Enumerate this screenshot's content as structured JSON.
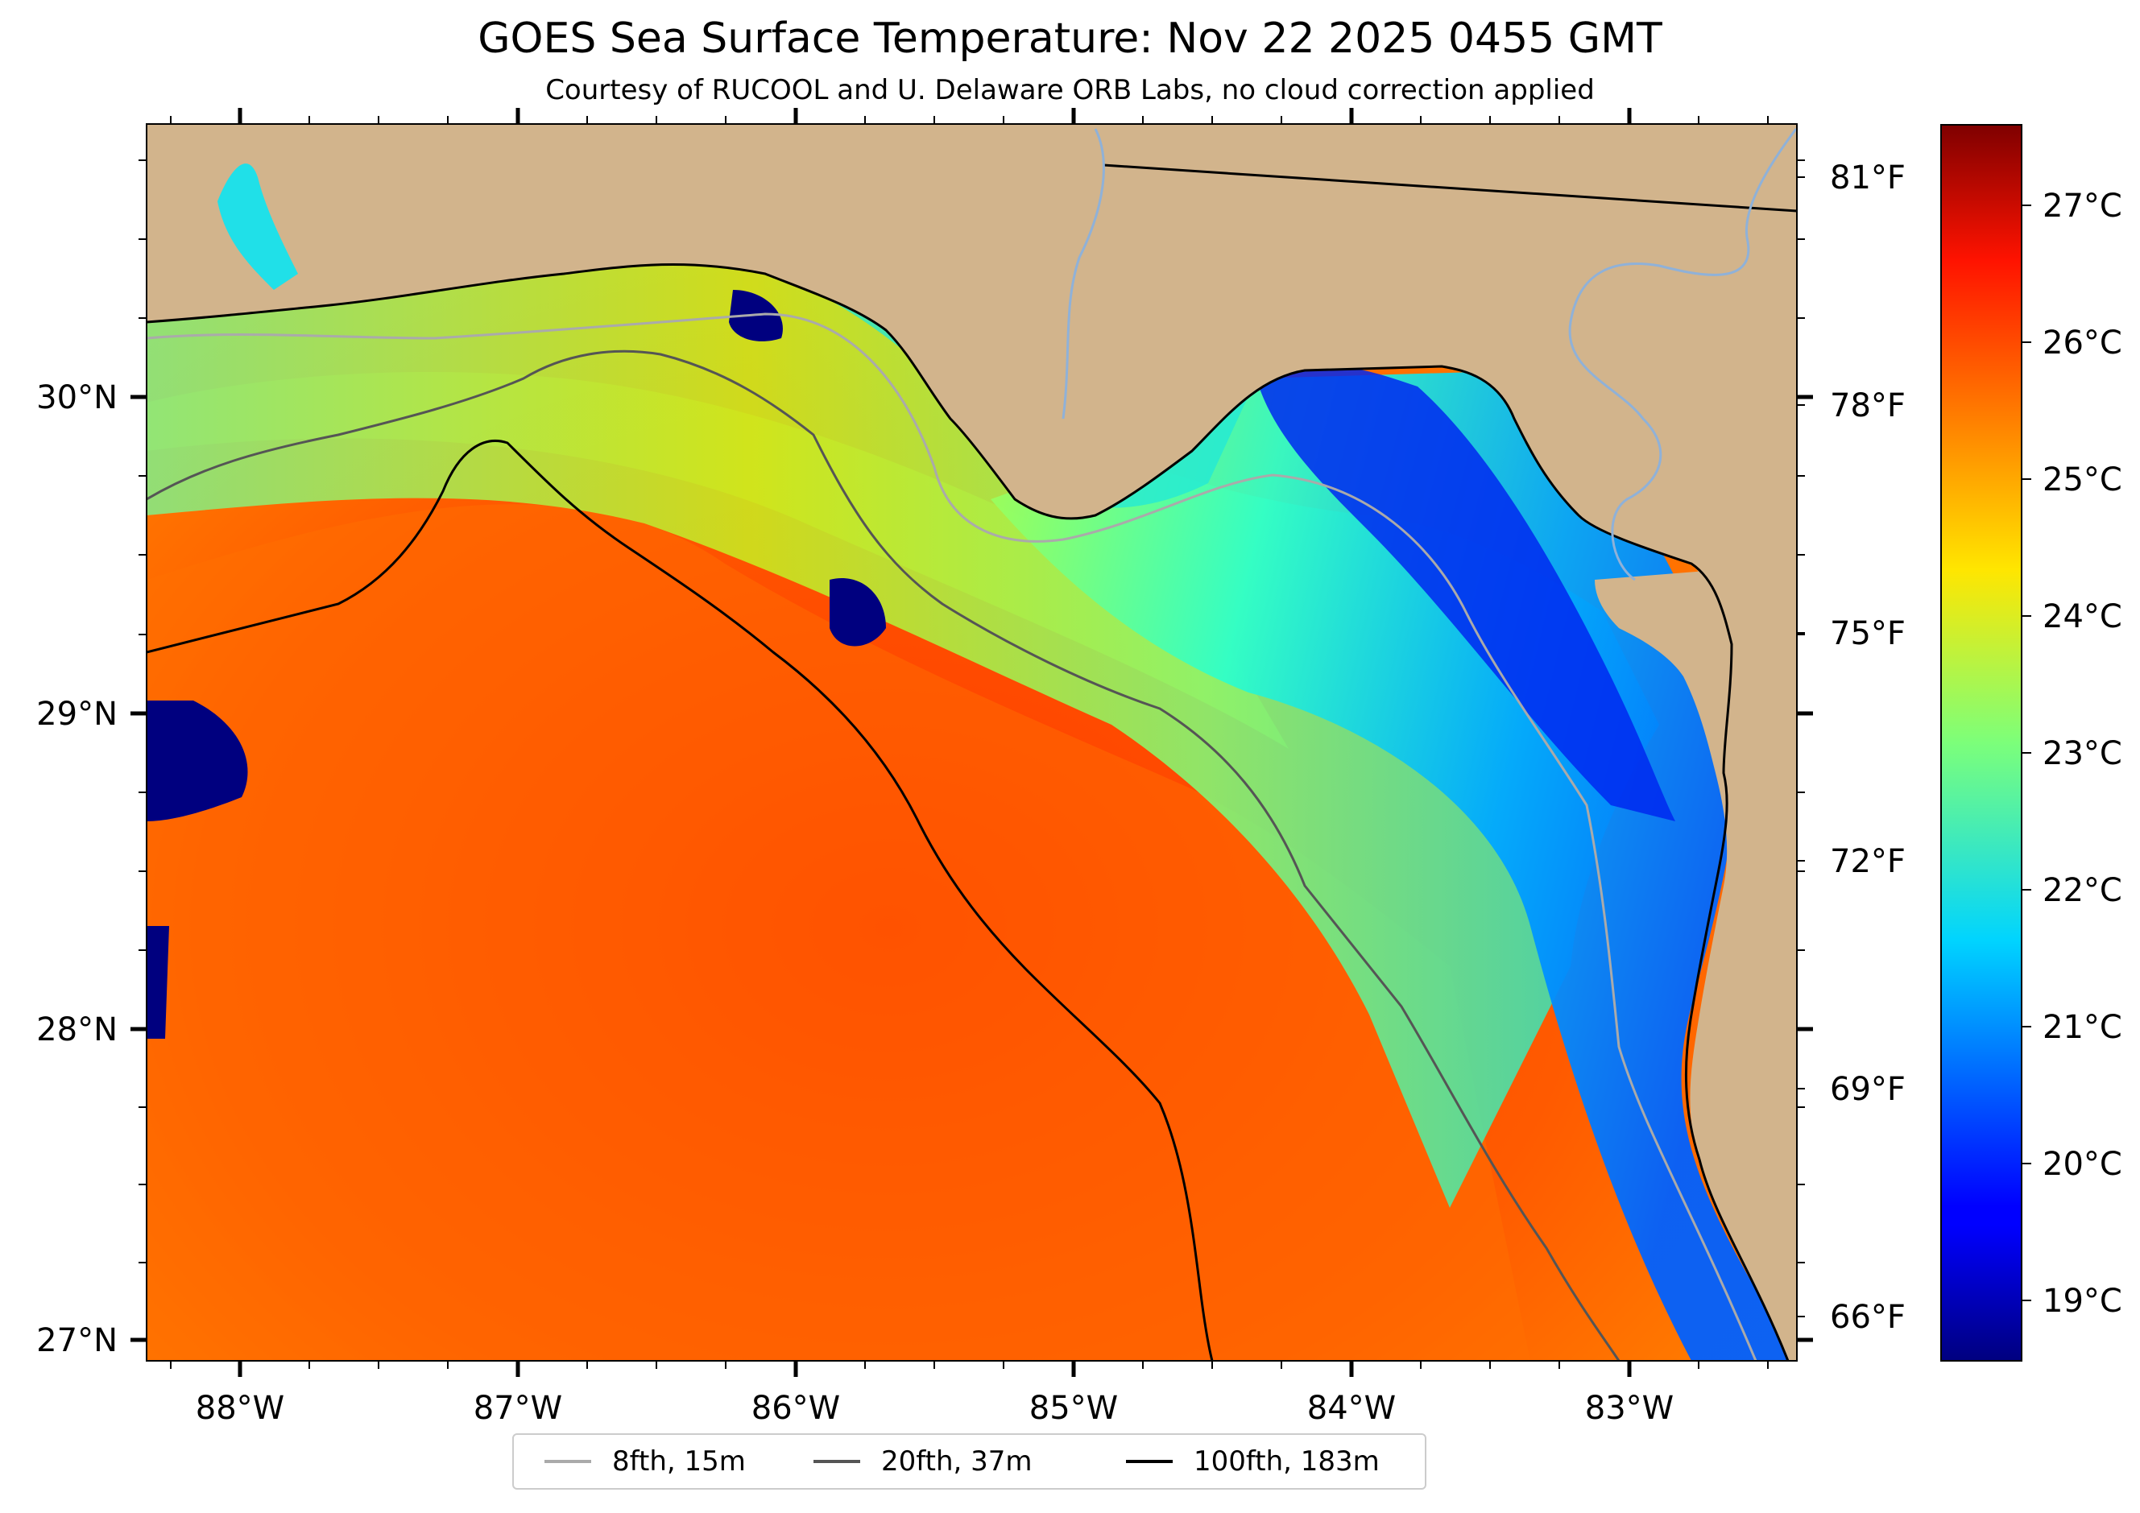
{
  "title": "GOES Sea Surface Temperature: Nov 22 2025 0455 GMT",
  "subtitle": "Courtesy of RUCOOL and U. Delaware ORB Labs, no cloud correction applied",
  "axes": {
    "x_ticks": [
      "88°W",
      "87°W",
      "86°W",
      "85°W",
      "84°W",
      "83°W"
    ],
    "y_ticks_left": [
      "30°N",
      "29°N",
      "28°N",
      "27°N"
    ],
    "y_ticks_right": [
      "81°F",
      "78°F",
      "75°F",
      "72°F",
      "69°F",
      "66°F"
    ]
  },
  "colorbar": {
    "labels": [
      "27°C",
      "26°C",
      "25°C",
      "24°C",
      "23°C",
      "22°C",
      "21°C",
      "20°C",
      "19°C"
    ],
    "colormap": "jet"
  },
  "legend": {
    "items": [
      {
        "label": "8fth, 15m",
        "color": "#aaaaaa"
      },
      {
        "label": "20fth, 37m",
        "color": "#555555"
      },
      {
        "label": "100fth, 183m",
        "color": "#000000"
      }
    ]
  },
  "colors": {
    "land": "#d2b48c",
    "river": "#8fb1d8"
  }
}
